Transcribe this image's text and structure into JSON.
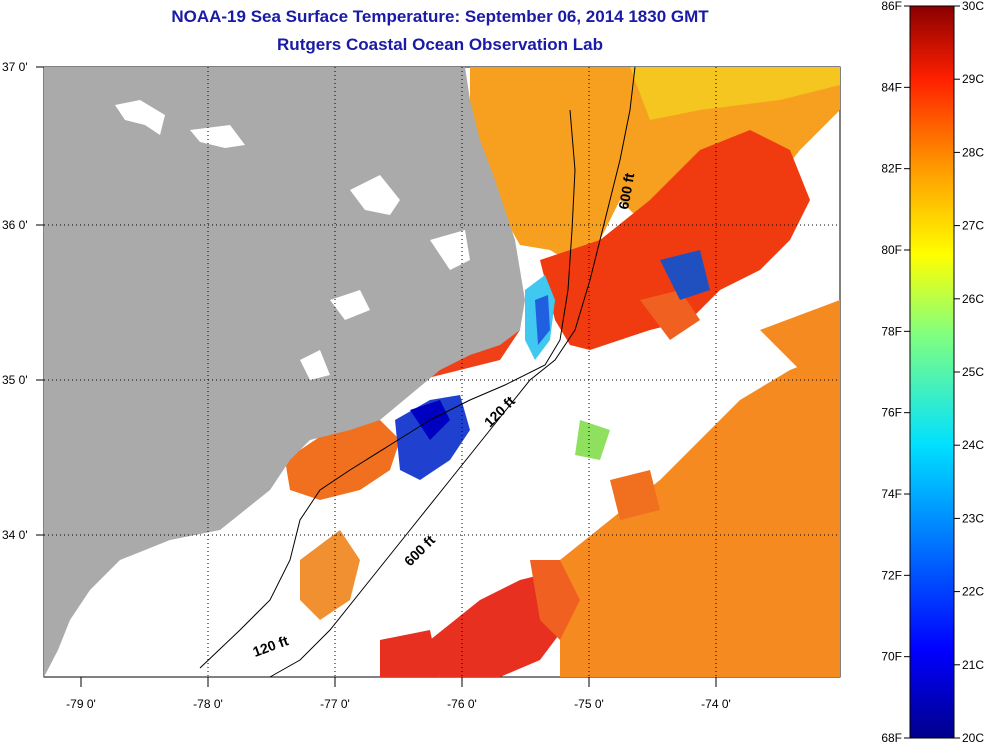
{
  "title": "NOAA-19 Sea Surface Temperature:  September 06, 2014 1830 GMT",
  "subtitle": "Rutgers Coastal Ocean Observation Lab",
  "lat_ticks": [
    "37 0'",
    "36 0'",
    "35 0'",
    "34 0'"
  ],
  "lon_ticks": [
    "-79 0'",
    "-78 0'",
    "-77 0'",
    "-76 0'",
    "-75 0'",
    "-74 0'"
  ],
  "contours": {
    "c600_north": "600 ft",
    "c120": "120 ft",
    "c600_south": "600 ft",
    "c120_south": "120 ft"
  },
  "colorbar": {
    "fahrenheit": [
      "86F",
      "84F",
      "82F",
      "80F",
      "78F",
      "76F",
      "74F",
      "72F",
      "70F",
      "68F"
    ],
    "celsius": [
      "30C",
      "29C",
      "28C",
      "27C",
      "26C",
      "25C",
      "24C",
      "23C",
      "22C",
      "21C",
      "20C"
    ]
  },
  "colors": {
    "title": "#1a1aa6",
    "land": "#aaaaaa"
  }
}
